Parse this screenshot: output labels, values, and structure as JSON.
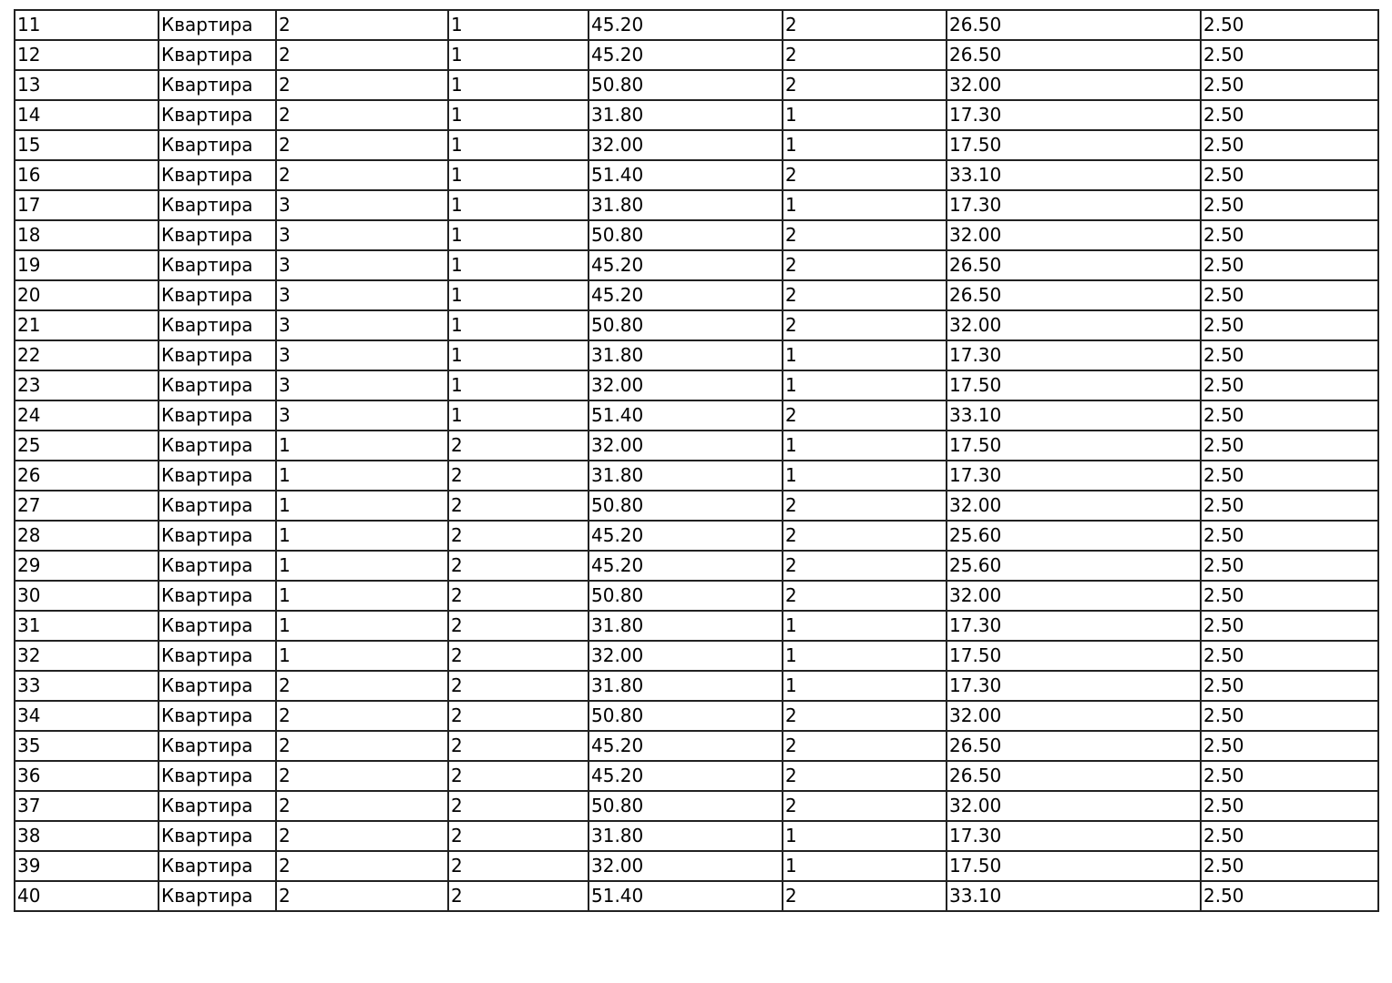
{
  "table": {
    "rows": [
      [
        "11",
        "Квартира",
        "2",
        "1",
        "45.20",
        "2",
        "26.50",
        "2.50"
      ],
      [
        "12",
        "Квартира",
        "2",
        "1",
        "45.20",
        "2",
        "26.50",
        "2.50"
      ],
      [
        "13",
        "Квартира",
        "2",
        "1",
        "50.80",
        "2",
        "32.00",
        "2.50"
      ],
      [
        "14",
        "Квартира",
        "2",
        "1",
        "31.80",
        "1",
        "17.30",
        "2.50"
      ],
      [
        "15",
        "Квартира",
        "2",
        "1",
        "32.00",
        "1",
        "17.50",
        "2.50"
      ],
      [
        "16",
        "Квартира",
        "2",
        "1",
        "51.40",
        "2",
        "33.10",
        "2.50"
      ],
      [
        "17",
        "Квартира",
        "3",
        "1",
        "31.80",
        "1",
        "17.30",
        "2.50"
      ],
      [
        "18",
        "Квартира",
        "3",
        "1",
        "50.80",
        "2",
        "32.00",
        "2.50"
      ],
      [
        "19",
        "Квартира",
        "3",
        "1",
        "45.20",
        "2",
        "26.50",
        "2.50"
      ],
      [
        "20",
        "Квартира",
        "3",
        "1",
        "45.20",
        "2",
        "26.50",
        "2.50"
      ],
      [
        "21",
        "Квартира",
        "3",
        "1",
        "50.80",
        "2",
        "32.00",
        "2.50"
      ],
      [
        "22",
        "Квартира",
        "3",
        "1",
        "31.80",
        "1",
        "17.30",
        "2.50"
      ],
      [
        "23",
        "Квартира",
        "3",
        "1",
        "32.00",
        "1",
        "17.50",
        "2.50"
      ],
      [
        "24",
        "Квартира",
        "3",
        "1",
        "51.40",
        "2",
        "33.10",
        "2.50"
      ],
      [
        "25",
        "Квартира",
        "1",
        "2",
        "32.00",
        "1",
        "17.50",
        "2.50"
      ],
      [
        "26",
        "Квартира",
        "1",
        "2",
        "31.80",
        "1",
        "17.30",
        "2.50"
      ],
      [
        "27",
        "Квартира",
        "1",
        "2",
        "50.80",
        "2",
        "32.00",
        "2.50"
      ],
      [
        "28",
        "Квартира",
        "1",
        "2",
        "45.20",
        "2",
        "25.60",
        "2.50"
      ],
      [
        "29",
        "Квартира",
        "1",
        "2",
        "45.20",
        "2",
        "25.60",
        "2.50"
      ],
      [
        "30",
        "Квартира",
        "1",
        "2",
        "50.80",
        "2",
        "32.00",
        "2.50"
      ],
      [
        "31",
        "Квартира",
        "1",
        "2",
        "31.80",
        "1",
        "17.30",
        "2.50"
      ],
      [
        "32",
        "Квартира",
        "1",
        "2",
        "32.00",
        "1",
        "17.50",
        "2.50"
      ],
      [
        "33",
        "Квартира",
        "2",
        "2",
        "31.80",
        "1",
        "17.30",
        "2.50"
      ],
      [
        "34",
        "Квартира",
        "2",
        "2",
        "50.80",
        "2",
        "32.00",
        "2.50"
      ],
      [
        "35",
        "Квартира",
        "2",
        "2",
        "45.20",
        "2",
        "26.50",
        "2.50"
      ],
      [
        "36",
        "Квартира",
        "2",
        "2",
        "45.20",
        "2",
        "26.50",
        "2.50"
      ],
      [
        "37",
        "Квартира",
        "2",
        "2",
        "50.80",
        "2",
        "32.00",
        "2.50"
      ],
      [
        "38",
        "Квартира",
        "2",
        "2",
        "31.80",
        "1",
        "17.30",
        "2.50"
      ],
      [
        "39",
        "Квартира",
        "2",
        "2",
        "32.00",
        "1",
        "17.50",
        "2.50"
      ],
      [
        "40",
        "Квартира",
        "2",
        "2",
        "51.40",
        "2",
        "33.10",
        "2.50"
      ]
    ]
  }
}
